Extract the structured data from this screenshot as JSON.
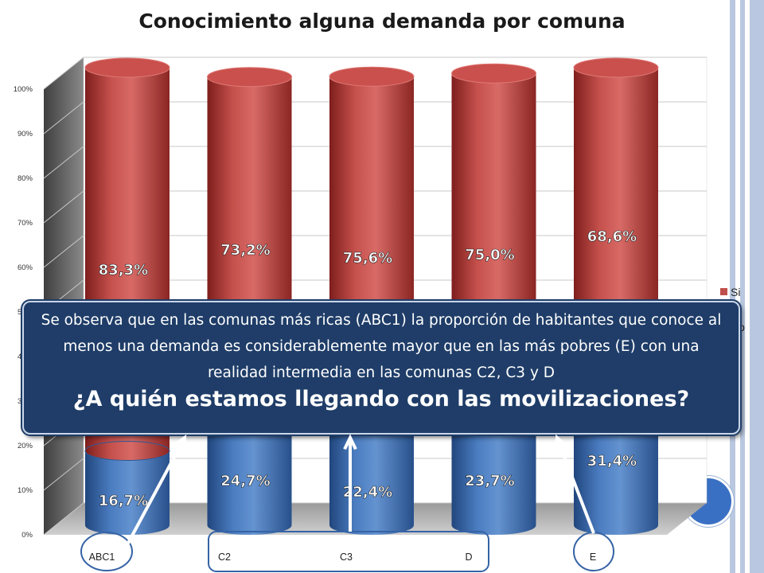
{
  "slide": {
    "title": "Conocimiento alguna demanda por comuna",
    "callout_text": "Se observa que en las comunas más ricas (ABC1) la proporción de habitantes que conoce al menos una demanda es considerablemente mayor que en las más pobres (E) con una realidad intermedia en las comunas C2, C3 y D",
    "callout_question": "¿A quién estamos llegando con las movilizaciones?"
  },
  "colors": {
    "si": "#c0504d",
    "no": "#4f81bd",
    "callout_bg": "#1f3d68",
    "frame": "#b8c7df"
  },
  "chart_data": {
    "type": "bar",
    "stacked": true,
    "percent": true,
    "categories": [
      "ABC1",
      "C2",
      "C3",
      "D",
      "E"
    ],
    "series": [
      {
        "name": "No",
        "values": [
          16.7,
          24.7,
          22.4,
          23.7,
          31.4
        ],
        "labels": [
          "16,7%",
          "24,7%",
          "22,4%",
          "23,7%",
          "31,4%"
        ]
      },
      {
        "name": "Si",
        "values": [
          83.3,
          73.2,
          75.6,
          75.0,
          68.6
        ],
        "labels": [
          "83,3%",
          "73,2%",
          "75,6%",
          "75,0%",
          "68,6%"
        ]
      }
    ],
    "yticks": [
      "0%",
      "10%",
      "20%",
      "30%",
      "40%",
      "50%",
      "60%",
      "70%",
      "80%",
      "90%",
      "100%"
    ],
    "ylim": [
      0,
      100
    ],
    "legend": [
      "Si",
      "No"
    ],
    "legend_position": "right"
  }
}
